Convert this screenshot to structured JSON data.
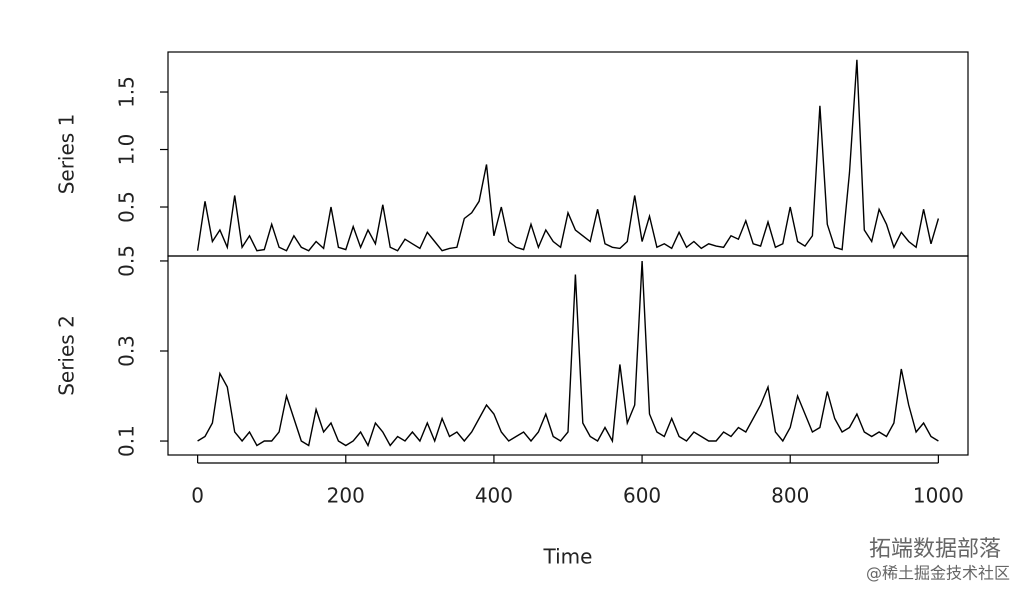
{
  "chart_data": [
    {
      "type": "line",
      "ylabel": "Series 1",
      "xlim": [
        -40,
        1040
      ],
      "ylim": [
        0.074,
        1.848
      ],
      "yticks": [
        0.5,
        {
          "value": 1,
          "label": "1.0"
        },
        1.5
      ],
      "x": [
        0,
        10,
        20,
        30,
        40,
        50,
        60,
        70,
        80,
        90,
        100,
        110,
        120,
        130,
        140,
        150,
        160,
        170,
        180,
        190,
        200,
        210,
        220,
        230,
        240,
        250,
        260,
        270,
        280,
        290,
        300,
        310,
        320,
        330,
        340,
        350,
        360,
        370,
        380,
        390,
        400,
        410,
        420,
        430,
        440,
        450,
        460,
        470,
        480,
        490,
        500,
        510,
        520,
        530,
        540,
        550,
        560,
        570,
        580,
        590,
        600,
        610,
        620,
        630,
        640,
        650,
        660,
        670,
        680,
        690,
        700,
        710,
        720,
        730,
        740,
        750,
        760,
        770,
        780,
        790,
        800,
        810,
        820,
        830,
        840,
        850,
        860,
        870,
        880,
        890,
        900,
        910,
        920,
        930,
        940,
        950,
        960,
        970,
        980,
        990,
        1000
      ],
      "series": [
        {
          "color": "#000000",
          "values": [
            0.12,
            0.55,
            0.2,
            0.3,
            0.15,
            0.6,
            0.15,
            0.25,
            0.12,
            0.13,
            0.35,
            0.15,
            0.12,
            0.25,
            0.15,
            0.12,
            0.2,
            0.14,
            0.5,
            0.15,
            0.13,
            0.33,
            0.15,
            0.3,
            0.18,
            0.52,
            0.15,
            0.12,
            0.22,
            0.18,
            0.14,
            0.28,
            0.2,
            0.12,
            0.14,
            0.15,
            0.4,
            0.45,
            0.55,
            0.87,
            0.25,
            0.5,
            0.2,
            0.15,
            0.13,
            0.35,
            0.15,
            0.3,
            0.2,
            0.15,
            0.45,
            0.3,
            0.25,
            0.2,
            0.48,
            0.18,
            0.15,
            0.14,
            0.2,
            0.6,
            0.2,
            0.42,
            0.15,
            0.18,
            0.14,
            0.28,
            0.15,
            0.2,
            0.14,
            0.18,
            0.16,
            0.15,
            0.25,
            0.22,
            0.38,
            0.18,
            0.16,
            0.37,
            0.15,
            0.18,
            0.5,
            0.2,
            0.16,
            0.25,
            1.38,
            0.35,
            0.15,
            0.13,
            0.8,
            1.78,
            0.3,
            0.2,
            0.48,
            0.35,
            0.15,
            0.28,
            0.2,
            0.15,
            0.48,
            0.18,
            0.4
          ]
        }
      ]
    },
    {
      "type": "line",
      "ylabel": "Series 2",
      "xlabel": "Time",
      "xlim": [
        -40,
        1040
      ],
      "xticks": [
        0,
        200,
        400,
        600,
        800,
        1000
      ],
      "ylim": [
        0.069,
        0.511
      ],
      "yticks": [
        0.1,
        0.3,
        0.5
      ],
      "x": [
        0,
        10,
        20,
        30,
        40,
        50,
        60,
        70,
        80,
        90,
        100,
        110,
        120,
        130,
        140,
        150,
        160,
        170,
        180,
        190,
        200,
        210,
        220,
        230,
        240,
        250,
        260,
        270,
        280,
        290,
        300,
        310,
        320,
        330,
        340,
        350,
        360,
        370,
        380,
        390,
        400,
        410,
        420,
        430,
        440,
        450,
        460,
        470,
        480,
        490,
        500,
        510,
        520,
        530,
        540,
        550,
        560,
        570,
        580,
        590,
        600,
        610,
        620,
        630,
        640,
        650,
        660,
        670,
        680,
        690,
        700,
        710,
        720,
        730,
        740,
        750,
        760,
        770,
        780,
        790,
        800,
        810,
        820,
        830,
        840,
        850,
        860,
        870,
        880,
        890,
        900,
        910,
        920,
        930,
        940,
        950,
        960,
        970,
        980,
        990,
        1000
      ],
      "series": [
        {
          "color": "#000000",
          "values": [
            0.1,
            0.11,
            0.14,
            0.25,
            0.22,
            0.12,
            0.1,
            0.12,
            0.09,
            0.1,
            0.1,
            0.12,
            0.2,
            0.15,
            0.1,
            0.09,
            0.17,
            0.12,
            0.14,
            0.1,
            0.09,
            0.1,
            0.12,
            0.09,
            0.14,
            0.12,
            0.09,
            0.11,
            0.1,
            0.12,
            0.1,
            0.14,
            0.1,
            0.15,
            0.11,
            0.12,
            0.1,
            0.12,
            0.15,
            0.18,
            0.16,
            0.12,
            0.1,
            0.11,
            0.12,
            0.1,
            0.12,
            0.16,
            0.11,
            0.1,
            0.12,
            0.47,
            0.14,
            0.11,
            0.1,
            0.13,
            0.1,
            0.27,
            0.14,
            0.18,
            0.5,
            0.16,
            0.12,
            0.11,
            0.15,
            0.11,
            0.1,
            0.12,
            0.11,
            0.1,
            0.1,
            0.12,
            0.11,
            0.13,
            0.12,
            0.15,
            0.18,
            0.22,
            0.12,
            0.1,
            0.13,
            0.2,
            0.16,
            0.12,
            0.13,
            0.21,
            0.15,
            0.12,
            0.13,
            0.16,
            0.12,
            0.11,
            0.12,
            0.11,
            0.14,
            0.26,
            0.18,
            0.12,
            0.14,
            0.11,
            0.1
          ]
        }
      ]
    }
  ],
  "watermark": {
    "line1": "拓端数据部落",
    "line2": "@稀土掘金技术社区"
  }
}
